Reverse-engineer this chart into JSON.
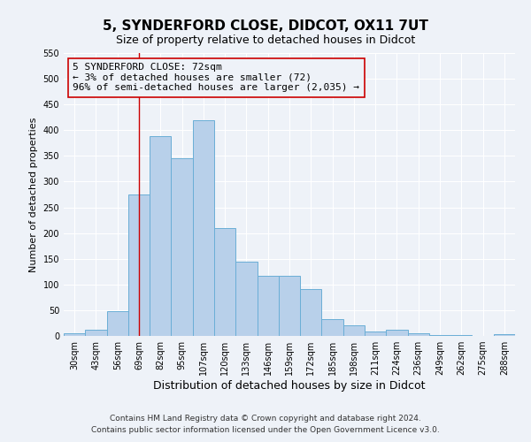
{
  "title": "5, SYNDERFORD CLOSE, DIDCOT, OX11 7UT",
  "subtitle": "Size of property relative to detached houses in Didcot",
  "xlabel": "Distribution of detached houses by size in Didcot",
  "ylabel": "Number of detached properties",
  "categories": [
    "30sqm",
    "43sqm",
    "56sqm",
    "69sqm",
    "82sqm",
    "95sqm",
    "107sqm",
    "120sqm",
    "133sqm",
    "146sqm",
    "159sqm",
    "172sqm",
    "185sqm",
    "198sqm",
    "211sqm",
    "224sqm",
    "236sqm",
    "249sqm",
    "262sqm",
    "275sqm",
    "288sqm"
  ],
  "values": [
    5,
    12,
    48,
    275,
    388,
    345,
    420,
    210,
    144,
    117,
    117,
    91,
    32,
    21,
    8,
    12,
    5,
    2,
    1,
    0,
    3
  ],
  "bar_color": "#b8d0ea",
  "bar_edge_color": "#6aaed6",
  "vline_x_index": 3,
  "vline_color": "#cc0000",
  "annotation_line1": "5 SYNDERFORD CLOSE: 72sqm",
  "annotation_line2": "← 3% of detached houses are smaller (72)",
  "annotation_line3": "96% of semi-detached houses are larger (2,035) →",
  "box_color": "#cc0000",
  "ylim": [
    0,
    550
  ],
  "yticks": [
    0,
    50,
    100,
    150,
    200,
    250,
    300,
    350,
    400,
    450,
    500,
    550
  ],
  "footnote1": "Contains HM Land Registry data © Crown copyright and database right 2024.",
  "footnote2": "Contains public sector information licensed under the Open Government Licence v3.0.",
  "background_color": "#eef2f8",
  "grid_color": "#ffffff",
  "title_fontsize": 11,
  "subtitle_fontsize": 9,
  "xlabel_fontsize": 9,
  "ylabel_fontsize": 8,
  "tick_fontsize": 7,
  "annotation_fontsize": 8,
  "footnote_fontsize": 6.5
}
